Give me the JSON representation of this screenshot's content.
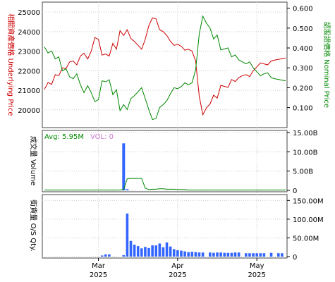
{
  "chart_data": {
    "type": "line",
    "panels": [
      {
        "name": "price",
        "left_axis": {
          "label": "相關資產價格 Underlying Price",
          "ticks": [
            20000,
            21000,
            22000,
            23000,
            24000,
            25000
          ],
          "ylim": [
            19200,
            25400
          ],
          "color": "#cc0000"
        },
        "right_axis": {
          "label": "認股證價格 Nominal Price",
          "ticks": [
            "0.100",
            "0.200",
            "0.300",
            "0.400",
            "0.500",
            "0.600"
          ],
          "ylim": [
            0.01,
            0.62
          ],
          "color": "#008800"
        },
        "series": [
          {
            "color": "#cc0000",
            "axis": "left",
            "values": [
              21050,
              21400,
              21300,
              21800,
              21750,
              22150,
              22100,
              22450,
              22500,
              22300,
              22750,
              22900,
              22600,
              23000,
              23700,
              23600,
              22800,
              22850,
              22750,
              23400,
              23100,
              24050,
              23800,
              24100,
              23650,
              23500,
              23300,
              23100,
              23600,
              24300,
              24700,
              24650,
              24100,
              24000,
              23800,
              23500,
              23300,
              23350,
              23250,
              23050,
              23100,
              23000,
              22500,
              20700,
              19750,
              20100,
              20300,
              20750,
              20600,
              21250,
              21200,
              21150,
              21550,
              21450,
              21650,
              21750,
              21800,
              21700,
              22000,
              22200,
              22400,
              22350,
              22300,
              22500,
              22550,
              22580,
              22620,
              22650
            ]
          },
          {
            "color": "#008800",
            "axis": "right",
            "values": [
              0.405,
              0.375,
              0.385,
              0.345,
              0.355,
              0.285,
              0.295,
              0.255,
              0.245,
              0.27,
              0.215,
              0.175,
              0.21,
              0.175,
              0.13,
              0.14,
              0.235,
              0.23,
              0.24,
              0.165,
              0.19,
              0.085,
              0.115,
              0.09,
              0.145,
              0.16,
              0.18,
              0.2,
              0.145,
              0.09,
              0.04,
              0.045,
              0.1,
              0.115,
              0.135,
              0.17,
              0.2,
              0.195,
              0.205,
              0.225,
              0.215,
              0.225,
              0.29,
              0.47,
              0.56,
              0.525,
              0.5,
              0.445,
              0.465,
              0.39,
              0.395,
              0.4,
              0.355,
              0.365,
              0.34,
              0.33,
              0.32,
              0.33,
              0.3,
              0.28,
              0.26,
              0.27,
              0.275,
              0.25,
              0.245,
              0.242,
              0.238,
              0.235
            ]
          }
        ]
      },
      {
        "name": "volume",
        "right_axis": {
          "label": "成交量 Volume",
          "ticks": [
            "0",
            "5.00B",
            "10.00B",
            "15.00B"
          ]
        },
        "avg_label": "Avg: 5.95M",
        "vol_label": "VOL: 0",
        "bars": {
          "color": "#3366ff",
          "values": [
            0,
            0,
            0,
            0,
            0,
            0,
            0,
            0,
            0,
            0,
            0,
            0,
            0,
            0,
            0,
            0,
            0,
            0,
            0,
            0,
            0,
            0,
            12.2,
            0.3,
            0,
            0,
            0,
            0,
            0,
            0,
            0,
            0,
            0,
            0,
            0,
            0,
            0,
            0,
            0,
            0,
            0,
            0,
            0,
            0,
            0,
            0,
            0,
            0,
            0,
            0,
            0,
            0,
            0,
            0,
            0,
            0,
            0,
            0,
            0,
            0,
            0,
            0,
            0,
            0,
            0,
            0,
            0,
            0
          ]
        },
        "avg_line": {
          "color": "#008800",
          "values": [
            0.1,
            0.1,
            0.1,
            0.1,
            0.1,
            0.1,
            0.1,
            0.1,
            0.1,
            0.1,
            0.1,
            0.1,
            0.1,
            0.1,
            0.1,
            0.1,
            0.1,
            0.1,
            0.1,
            0.1,
            0.1,
            0.1,
            0.2,
            3.0,
            3.1,
            3.1,
            3.1,
            3.1,
            0.6,
            0.2,
            0.3,
            0.3,
            0.4,
            0.4,
            0.3,
            0.3,
            0.3,
            0.2,
            0.2,
            0.2,
            0.1,
            0.1,
            0.1,
            0.1,
            0.1,
            0.1,
            0.1,
            0.1,
            0.1,
            0.1,
            0.1,
            0.1,
            0.1,
            0.1,
            0.1,
            0.1,
            0.1,
            0.1,
            0.1,
            0.1,
            0.1,
            0.1,
            0.1,
            0.1,
            0.1,
            0.1,
            0.1,
            0.1
          ]
        },
        "ylim": [
          0,
          15
        ]
      },
      {
        "name": "os_qty",
        "right_axis": {
          "label": "街貨量 O/S Qty.",
          "ticks": [
            "0",
            "50.00M",
            "100.00M",
            "150.00M"
          ]
        },
        "bars": {
          "color": "#3366ff",
          "values": [
            0,
            0,
            0,
            0,
            0,
            0,
            0,
            0,
            0,
            0,
            0,
            0,
            0,
            0,
            0,
            0,
            3,
            6,
            6,
            0,
            0,
            0,
            4,
            115,
            42,
            32,
            28,
            22,
            26,
            23,
            30,
            30,
            35,
            25,
            38,
            27,
            20,
            17,
            16,
            14,
            12,
            13,
            12,
            11,
            11,
            0,
            11,
            10,
            11,
            11,
            10,
            10,
            10,
            11,
            11,
            0,
            9,
            9,
            9,
            9,
            9,
            9,
            0,
            10,
            0,
            9,
            9,
            0
          ]
        },
        "ylim": [
          0,
          160
        ]
      }
    ],
    "x_axis": {
      "labels": [
        [
          "Mar",
          "2025"
        ],
        [
          "Apr",
          "2025"
        ],
        [
          "May",
          "2025"
        ]
      ],
      "label_index": [
        15,
        37,
        59
      ]
    }
  }
}
